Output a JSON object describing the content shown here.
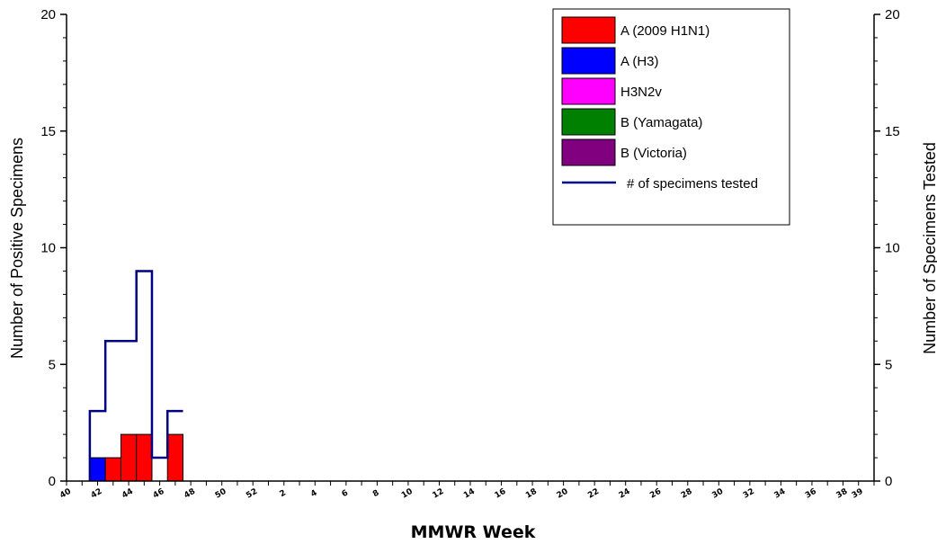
{
  "chart_data": {
    "type": "bar",
    "xlabel": "MMWR Week",
    "ylabel": "Number of Positive Specimens",
    "y2label": "Number of Specimens Tested",
    "ylim": [
      0,
      20
    ],
    "y2lim": [
      0,
      20
    ],
    "yticks": [
      "0",
      "5",
      "10",
      "15",
      "20"
    ],
    "y2ticks": [
      "0",
      "5",
      "10",
      "15",
      "20"
    ],
    "categories": [
      "40",
      "41",
      "42",
      "43",
      "44",
      "45",
      "46",
      "47",
      "48",
      "49",
      "50",
      "51",
      "52",
      "1",
      "2",
      "3",
      "4",
      "5",
      "6",
      "7",
      "8",
      "9",
      "10",
      "11",
      "12",
      "13",
      "14",
      "15",
      "16",
      "17",
      "18",
      "19",
      "20",
      "21",
      "22",
      "23",
      "24",
      "25",
      "26",
      "27",
      "28",
      "29",
      "30",
      "31",
      "32",
      "33",
      "34",
      "35",
      "36",
      "37",
      "38",
      "39"
    ],
    "tick_labels": [
      "40",
      "42",
      "44",
      "46",
      "48",
      "50",
      "52",
      "2",
      "4",
      "6",
      "8",
      "10",
      "12",
      "14",
      "16",
      "18",
      "20",
      "22",
      "24",
      "26",
      "28",
      "30",
      "32",
      "34",
      "36",
      "38",
      "39"
    ],
    "stacked": true,
    "series": [
      {
        "name": "A (2009 H1N1)",
        "color": "#ff0000",
        "values": [
          0,
          0,
          1,
          2,
          2,
          0,
          2,
          0,
          0,
          0,
          0,
          0,
          0,
          0,
          0,
          0,
          0,
          0,
          0,
          0,
          0,
          0,
          0,
          0,
          0,
          0,
          0,
          0,
          0,
          0,
          0,
          0,
          0,
          0,
          0,
          0,
          0,
          0,
          0,
          0,
          0,
          0,
          0,
          0,
          0,
          0,
          0,
          0,
          0,
          0,
          0,
          0
        ]
      },
      {
        "name": "A (H3)",
        "color": "#0000ff",
        "values": [
          0,
          1,
          0,
          0,
          0,
          0,
          0,
          0,
          0,
          0,
          0,
          0,
          0,
          0,
          0,
          0,
          0,
          0,
          0,
          0,
          0,
          0,
          0,
          0,
          0,
          0,
          0,
          0,
          0,
          0,
          0,
          0,
          0,
          0,
          0,
          0,
          0,
          0,
          0,
          0,
          0,
          0,
          0,
          0,
          0,
          0,
          0,
          0,
          0,
          0,
          0,
          0
        ]
      },
      {
        "name": "H3N2v",
        "color": "#ff00ff",
        "values": [
          0,
          0,
          0,
          0,
          0,
          0,
          0,
          0,
          0,
          0,
          0,
          0,
          0,
          0,
          0,
          0,
          0,
          0,
          0,
          0,
          0,
          0,
          0,
          0,
          0,
          0,
          0,
          0,
          0,
          0,
          0,
          0,
          0,
          0,
          0,
          0,
          0,
          0,
          0,
          0,
          0,
          0,
          0,
          0,
          0,
          0,
          0,
          0,
          0,
          0,
          0,
          0
        ]
      },
      {
        "name": "B (Yamagata)",
        "color": "#008000",
        "values": [
          0,
          0,
          0,
          0,
          0,
          0,
          0,
          0,
          0,
          0,
          0,
          0,
          0,
          0,
          0,
          0,
          0,
          0,
          0,
          0,
          0,
          0,
          0,
          0,
          0,
          0,
          0,
          0,
          0,
          0,
          0,
          0,
          0,
          0,
          0,
          0,
          0,
          0,
          0,
          0,
          0,
          0,
          0,
          0,
          0,
          0,
          0,
          0,
          0,
          0,
          0,
          0
        ]
      },
      {
        "name": "B (Victoria)",
        "color": "#800080",
        "values": [
          0,
          0,
          0,
          0,
          0,
          0,
          0,
          0,
          0,
          0,
          0,
          0,
          0,
          0,
          0,
          0,
          0,
          0,
          0,
          0,
          0,
          0,
          0,
          0,
          0,
          0,
          0,
          0,
          0,
          0,
          0,
          0,
          0,
          0,
          0,
          0,
          0,
          0,
          0,
          0,
          0,
          0,
          0,
          0,
          0,
          0,
          0,
          0,
          0,
          0,
          0,
          0
        ]
      }
    ],
    "line_series": {
      "name": "# of specimens tested",
      "color": "#000080",
      "axis": "right",
      "values": [
        null,
        3,
        6,
        6,
        9,
        1,
        3,
        null,
        null,
        null,
        null,
        null,
        null,
        null,
        null,
        null,
        null,
        null,
        null,
        null,
        null,
        null,
        null,
        null,
        null,
        null,
        null,
        null,
        null,
        null,
        null,
        null,
        null,
        null,
        null,
        null,
        null,
        null,
        null,
        null,
        null,
        null,
        null,
        null,
        null,
        null,
        null,
        null,
        null,
        null,
        null,
        null
      ]
    },
    "legend": {
      "position": "top-right",
      "entries": [
        {
          "label": "A (2009 H1N1)",
          "kind": "box",
          "color": "#ff0000"
        },
        {
          "label": "A (H3)",
          "kind": "box",
          "color": "#0000ff"
        },
        {
          "label": "H3N2v",
          "kind": "box",
          "color": "#ff00ff"
        },
        {
          "label": "B (Yamagata)",
          "kind": "box",
          "color": "#008000"
        },
        {
          "label": "B (Victoria)",
          "kind": "box",
          "color": "#800080"
        },
        {
          "label": "# of specimens tested",
          "kind": "line",
          "color": "#000080"
        }
      ]
    },
    "grid": false
  }
}
